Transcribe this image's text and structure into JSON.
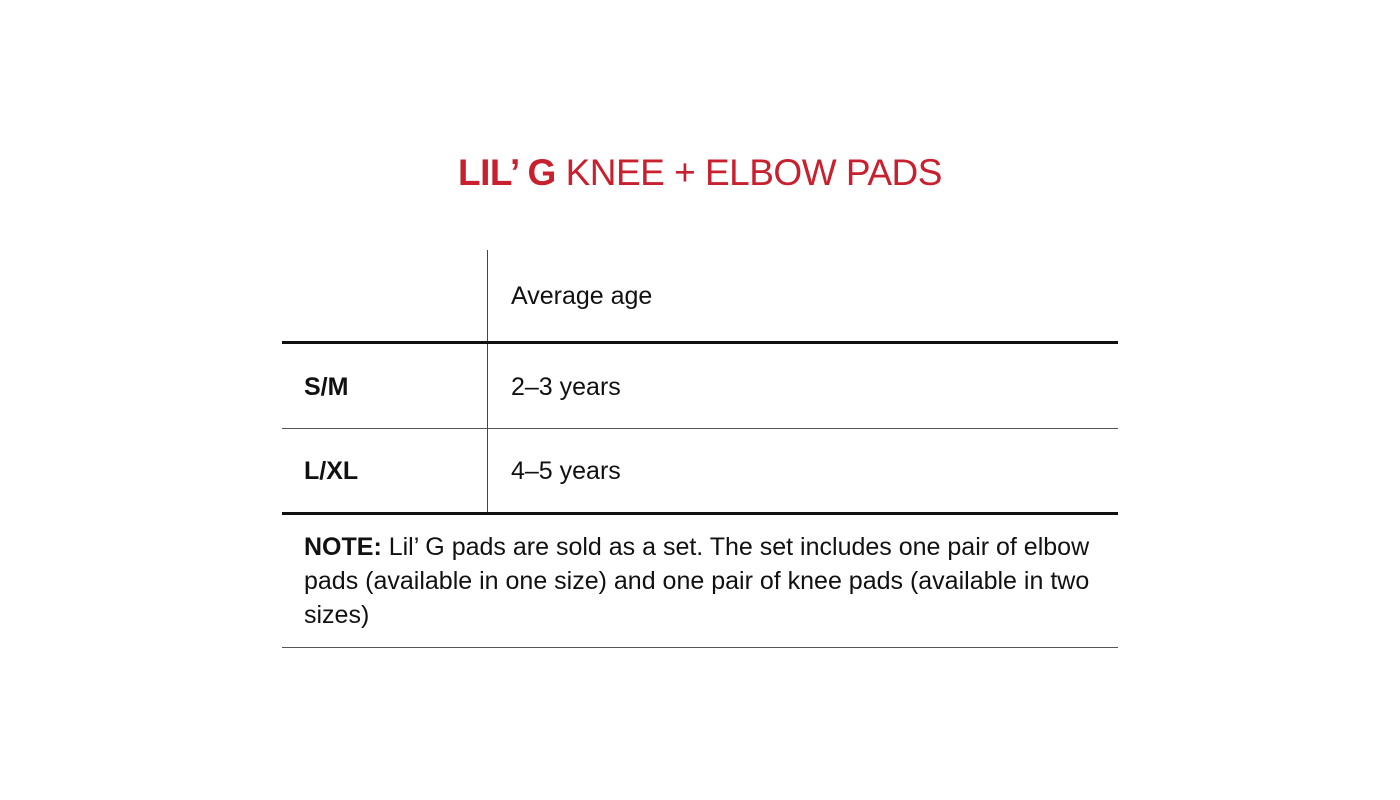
{
  "title": {
    "brand": "LIL’ G",
    "product": "KNEE + ELBOW PADS",
    "color": "#c8202f"
  },
  "table": {
    "header": [
      "",
      "Average age"
    ],
    "rows": [
      {
        "size": "S/M",
        "age": "2–3 years"
      },
      {
        "size": "L/XL",
        "age": "4–5 years"
      }
    ]
  },
  "note": {
    "label": "NOTE:",
    "text": " Lil’ G pads are sold as a set. The set includes one pair of elbow pads (available in one size) and one pair of knee pads (available in two sizes)"
  }
}
